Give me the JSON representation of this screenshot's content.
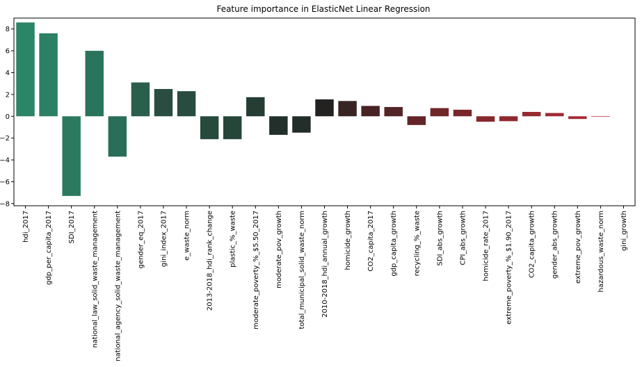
{
  "chart_data": {
    "type": "bar",
    "title": "Feature importance in ElasticNet Linear Regression",
    "xlabel": "",
    "ylabel": "",
    "ylim": [
      -8.2,
      9.0
    ],
    "yticks": [
      -8,
      -6,
      -4,
      -2,
      0,
      2,
      4,
      6,
      8
    ],
    "grid": false,
    "categories": [
      "hdi_2017",
      "gdp_per_capita_2017",
      "SDI_2017",
      "national_law_solid_waste_management",
      "national_agency_solid_waste_management",
      "gender_eq_2017",
      "gini_index_2017",
      "e_waste_norm",
      "2013-2018_hdi_rank_change",
      "plastic_%_waste",
      "moderate_poverty_%_$5.50_2017",
      "moderate_pov_growth",
      "total_municipal_solid_waste_norm",
      "2010-2018_hdi_annual_growth",
      "homicide_growth",
      "CO2_capita_2017",
      "gdp_capita_growth",
      "recycling_%_waste",
      "SDI_abs_growth",
      "CPI_abs_growth",
      "homicide_rate_2017",
      "extreme_poverty_%_$1.90_2017",
      "CO2_capita_growth",
      "gender_abs_growth",
      "extreme_pov_growth",
      "hazardous_waste_norm",
      "gini_growth"
    ],
    "values": [
      8.6,
      7.6,
      -7.3,
      6.0,
      -3.7,
      3.1,
      2.5,
      2.3,
      -2.1,
      -2.1,
      1.75,
      -1.7,
      -1.5,
      1.55,
      1.4,
      0.95,
      0.85,
      -0.8,
      0.75,
      0.6,
      -0.5,
      -0.45,
      0.4,
      0.3,
      -0.25,
      -0.05,
      0.0
    ],
    "colors": [
      "#2b8567",
      "#2b8065",
      "#2b7a5f",
      "#2a735d",
      "#2a6d59",
      "#295f4b",
      "#294d41",
      "#284d40",
      "#264a3c",
      "#27463a",
      "#253d33",
      "#232f2b",
      "#232d2a",
      "#242221",
      "#392424",
      "#492224",
      "#532526",
      "#632428",
      "#6f2629",
      "#7b262b",
      "#86282e",
      "#8e292f",
      "#972a31",
      "#9e2a33",
      "#a72b35",
      "#b02c37",
      "#b82c38"
    ]
  }
}
